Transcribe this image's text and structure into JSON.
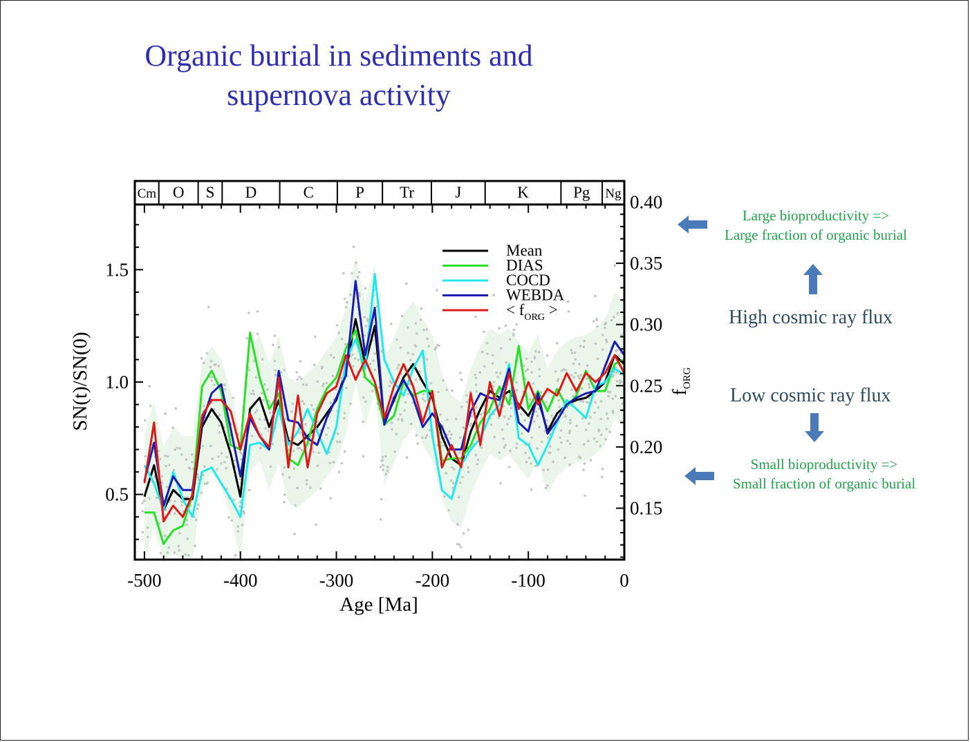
{
  "slide": {
    "title_line1": "Organic burial in sediments and",
    "title_line2": "supernova activity"
  },
  "annotations": {
    "large_line1": "Large bioproductivity =>",
    "large_line2": "Large fraction of organic burial",
    "high_flux": "High cosmic ray flux",
    "low_flux": "Low cosmic ray flux",
    "small_line1": "Small bioproductivity =>",
    "small_line2": "Small fraction of organic burial",
    "arrow_color": "#4a7ab8"
  },
  "chart_data": {
    "type": "line",
    "xlabel": "Age [Ma]",
    "ylabel": "SN(t)/SN(0)",
    "y2label": "f",
    "y2label_sub": "ORG",
    "xlim": [
      -510,
      0
    ],
    "ylim": [
      0.21,
      1.79
    ],
    "y2lim": [
      0.108,
      0.398
    ],
    "xticks": [
      -500,
      -400,
      -300,
      -200,
      -100,
      0
    ],
    "xtick_labels": [
      "-500",
      "-400",
      "-300",
      "-200",
      "-100",
      "0"
    ],
    "yticks": [
      0.5,
      1.0,
      1.5
    ],
    "ytick_labels": [
      "0.5",
      "1.0",
      "1.5"
    ],
    "y2ticks": [
      0.15,
      0.2,
      0.25,
      0.3,
      0.35,
      0.4
    ],
    "y2tick_labels": [
      "0.15",
      "0.20",
      "0.25",
      "0.30",
      "0.35",
      "0.40"
    ],
    "periods": [
      {
        "label": "Cm",
        "start": -510,
        "end": -485
      },
      {
        "label": "O",
        "start": -485,
        "end": -444
      },
      {
        "label": "S",
        "start": -444,
        "end": -419
      },
      {
        "label": "D",
        "start": -419,
        "end": -359
      },
      {
        "label": "C",
        "start": -359,
        "end": -299
      },
      {
        "label": "P",
        "start": -299,
        "end": -252
      },
      {
        "label": "Tr",
        "start": -252,
        "end": -201
      },
      {
        "label": "J",
        "start": -201,
        "end": -145
      },
      {
        "label": "K",
        "start": -145,
        "end": -66
      },
      {
        "label": "Pg",
        "start": -66,
        "end": -23
      },
      {
        "label": "Ng",
        "start": -23,
        "end": 0
      }
    ],
    "x": [
      -500,
      -490,
      -480,
      -470,
      -460,
      -450,
      -440,
      -430,
      -420,
      -410,
      -400,
      -390,
      -380,
      -370,
      -360,
      -350,
      -340,
      -330,
      -320,
      -310,
      -300,
      -290,
      -280,
      -270,
      -260,
      -250,
      -240,
      -230,
      -220,
      -210,
      -200,
      -190,
      -180,
      -170,
      -160,
      -150,
      -140,
      -130,
      -120,
      -110,
      -100,
      -90,
      -80,
      -70,
      -60,
      -50,
      -40,
      -30,
      -20,
      -10,
      0
    ],
    "series": [
      {
        "name": "Mean",
        "color": "#000000",
        "values": [
          0.49,
          0.63,
          0.43,
          0.52,
          0.48,
          0.48,
          0.8,
          0.88,
          0.82,
          0.68,
          0.49,
          0.88,
          0.93,
          0.8,
          0.92,
          0.74,
          0.72,
          0.76,
          0.8,
          0.86,
          0.92,
          1.05,
          1.28,
          1.08,
          1.25,
          0.82,
          0.92,
          1.02,
          1.08,
          1.0,
          0.93,
          0.76,
          0.66,
          0.63,
          0.78,
          0.88,
          0.96,
          0.93,
          0.96,
          0.9,
          0.85,
          0.93,
          0.78,
          0.86,
          0.9,
          0.92,
          0.93,
          0.96,
          1.0,
          1.12,
          1.08
        ]
      },
      {
        "name": "DIAS",
        "color": "#28e028",
        "values": [
          0.42,
          0.42,
          0.28,
          0.34,
          0.36,
          0.5,
          0.98,
          1.05,
          0.96,
          0.72,
          0.7,
          1.22,
          1.02,
          0.88,
          0.95,
          0.66,
          0.63,
          0.73,
          0.88,
          0.97,
          1.02,
          1.15,
          1.23,
          1.02,
          0.98,
          0.81,
          0.85,
          1.0,
          0.94,
          0.96,
          0.96,
          0.65,
          0.66,
          0.66,
          0.72,
          0.82,
          0.88,
          0.98,
          0.9,
          1.16,
          0.88,
          0.96,
          0.87,
          0.97,
          0.89,
          0.94,
          1.05,
          0.96,
          0.96,
          1.08,
          1.1
        ]
      },
      {
        "name": "COCD",
        "color": "#22e8ee",
        "values": [
          0.63,
          0.55,
          0.43,
          0.6,
          0.48,
          0.4,
          0.6,
          0.62,
          0.55,
          0.48,
          0.4,
          0.72,
          0.73,
          0.7,
          0.88,
          0.72,
          0.78,
          0.88,
          0.78,
          0.68,
          0.8,
          1.1,
          1.19,
          1.06,
          1.48,
          1.1,
          1.0,
          0.94,
          1.06,
          1.14,
          0.76,
          0.52,
          0.48,
          0.63,
          0.7,
          0.75,
          0.85,
          0.9,
          1.08,
          0.75,
          0.72,
          0.63,
          0.72,
          0.82,
          0.92,
          0.88,
          0.84,
          0.98,
          1.0,
          1.06,
          1.03
        ]
      },
      {
        "name": "WEBDA",
        "color": "#1c1cb4",
        "values": [
          0.56,
          0.73,
          0.45,
          0.58,
          0.52,
          0.52,
          0.82,
          0.95,
          0.99,
          0.79,
          0.58,
          0.84,
          0.76,
          0.7,
          1.05,
          0.83,
          0.82,
          0.75,
          0.72,
          0.84,
          0.93,
          1.03,
          1.45,
          1.12,
          1.33,
          0.81,
          0.93,
          1.01,
          0.93,
          0.8,
          0.86,
          0.8,
          0.7,
          0.7,
          0.87,
          0.95,
          0.93,
          0.92,
          1.06,
          0.82,
          0.78,
          0.95,
          0.77,
          0.83,
          0.9,
          0.93,
          0.95,
          0.96,
          1.07,
          1.18,
          1.12
        ]
      },
      {
        "name": "< f_ORG >",
        "color": "#dd1a1a",
        "values": [
          0.55,
          0.82,
          0.38,
          0.45,
          0.4,
          0.5,
          0.85,
          0.92,
          0.92,
          0.87,
          0.7,
          0.86,
          0.76,
          0.71,
          1.02,
          0.62,
          0.94,
          0.62,
          0.86,
          0.95,
          0.98,
          1.12,
          1.01,
          1.1,
          1.0,
          0.84,
          0.98,
          1.08,
          0.98,
          0.82,
          0.96,
          0.62,
          0.72,
          0.62,
          0.95,
          0.72,
          1.0,
          0.85,
          1.04,
          0.88,
          1.0,
          0.9,
          0.97,
          0.94,
          1.04,
          0.96,
          1.04,
          1.0,
          1.04,
          1.12,
          1.04
        ]
      }
    ],
    "legend_position": "upper-center",
    "background_scatter": "grey points (individual SN estimates)",
    "uncertainty_band": "pale green shading"
  }
}
